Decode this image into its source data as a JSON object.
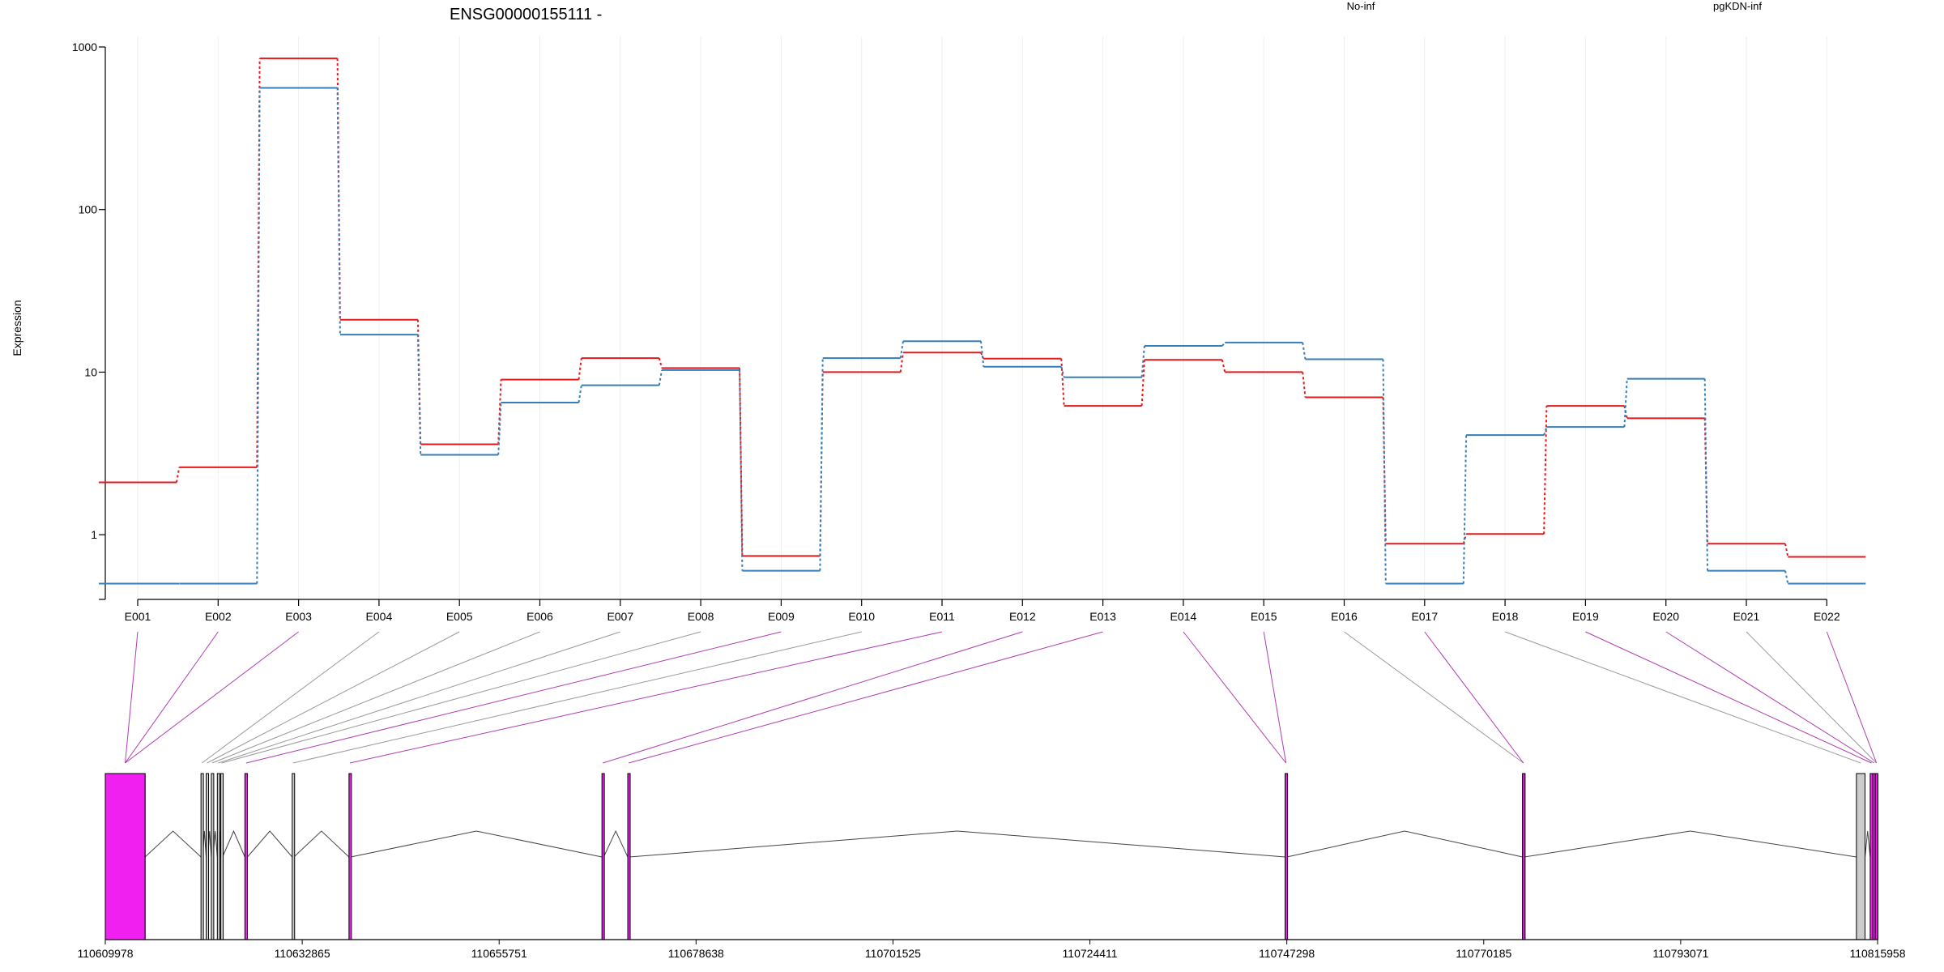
{
  "chart_data": {
    "type": "line",
    "title": "ENSG00000155111 -",
    "ylabel": "Expression",
    "yscale": "log",
    "ylim": [
      0.4,
      1000
    ],
    "yticks": [
      {
        "value": 1,
        "label": "1"
      },
      {
        "value": 10,
        "label": "10"
      },
      {
        "value": 100,
        "label": "100"
      },
      {
        "value": 1000,
        "label": "1000"
      }
    ],
    "categories": [
      "E001",
      "E002",
      "E003",
      "E004",
      "E005",
      "E006",
      "E007",
      "E008",
      "E009",
      "E010",
      "E011",
      "E012",
      "E013",
      "E014",
      "E015",
      "E016",
      "E017",
      "E018",
      "E019",
      "E020",
      "E021",
      "E022"
    ],
    "series": [
      {
        "name": "No-inf",
        "color": "#e31a1c",
        "values": [
          2.1,
          2.6,
          850,
          21,
          3.6,
          9.0,
          12.2,
          10.6,
          0.74,
          10.0,
          13.2,
          12.1,
          6.2,
          11.9,
          10.0,
          7.0,
          0.88,
          1.01,
          6.2,
          5.2,
          0.88,
          0.73
        ]
      },
      {
        "name": "pgKDN-inf",
        "color": "#377eb8",
        "values": [
          0.5,
          0.5,
          560,
          17,
          3.1,
          6.5,
          8.3,
          10.3,
          0.6,
          12.2,
          15.5,
          10.8,
          9.3,
          14.5,
          15.2,
          12.0,
          0.5,
          4.1,
          4.6,
          9.1,
          0.6,
          0.5
        ]
      }
    ],
    "grid": true,
    "legend_position": "top",
    "gene_model": {
      "coordinate_ticks": [
        "110609978",
        "110632865",
        "110655751",
        "110678638",
        "110701525",
        "110724411",
        "110747298",
        "110770185",
        "110793071",
        "110815958"
      ],
      "coordinate_tick_values": [
        110609978,
        110632865,
        110655751,
        110678638,
        110701525,
        110724411,
        110747298,
        110770185,
        110793071,
        110815958
      ],
      "exons": [
        {
          "id": "E001",
          "start": 110609978,
          "end": 110614600,
          "color": "#f020f0"
        },
        {
          "id": "E002",
          "start": 110609978,
          "end": 110614600,
          "color": "#f020f0"
        },
        {
          "id": "E003",
          "start": 110609978,
          "end": 110614600,
          "color": "#f020f0"
        },
        {
          "id": "E004",
          "start": 110621100,
          "end": 110621300,
          "color": "#cccccc"
        },
        {
          "id": "E005",
          "start": 110621700,
          "end": 110621900,
          "color": "#cccccc"
        },
        {
          "id": "E006",
          "start": 110622300,
          "end": 110622500,
          "color": "#cccccc"
        },
        {
          "id": "E007",
          "start": 110623000,
          "end": 110623200,
          "color": "#cccccc"
        },
        {
          "id": "E008",
          "start": 110623400,
          "end": 110623600,
          "color": "#cccccc"
        },
        {
          "id": "E009",
          "start": 110626200,
          "end": 110626500,
          "color": "#f020f0"
        },
        {
          "id": "E010",
          "start": 110631700,
          "end": 110631900,
          "color": "#cccccc"
        },
        {
          "id": "E011",
          "start": 110638300,
          "end": 110638500,
          "color": "#f020f0"
        },
        {
          "id": "E012",
          "start": 110667700,
          "end": 110667900,
          "color": "#f020f0"
        },
        {
          "id": "E013",
          "start": 110670700,
          "end": 110670900,
          "color": "#f020f0"
        },
        {
          "id": "E014",
          "start": 110747100,
          "end": 110747300,
          "color": "#f020f0"
        },
        {
          "id": "E015",
          "start": 110747100,
          "end": 110747300,
          "color": "#f020f0"
        },
        {
          "id": "E016",
          "start": 110774700,
          "end": 110774900,
          "color": "#cccccc"
        },
        {
          "id": "E017",
          "start": 110774700,
          "end": 110774900,
          "color": "#f020f0"
        },
        {
          "id": "E018",
          "start": 110813500,
          "end": 110814500,
          "color": "#cccccc"
        },
        {
          "id": "E019",
          "start": 110815100,
          "end": 110815400,
          "color": "#f020f0"
        },
        {
          "id": "E020",
          "start": 110815400,
          "end": 110815700,
          "color": "#f020f0"
        },
        {
          "id": "E021",
          "start": 110815700,
          "end": 110815958,
          "color": "#cccccc"
        },
        {
          "id": "E022",
          "start": 110815700,
          "end": 110815958,
          "color": "#f020f0"
        }
      ]
    }
  }
}
